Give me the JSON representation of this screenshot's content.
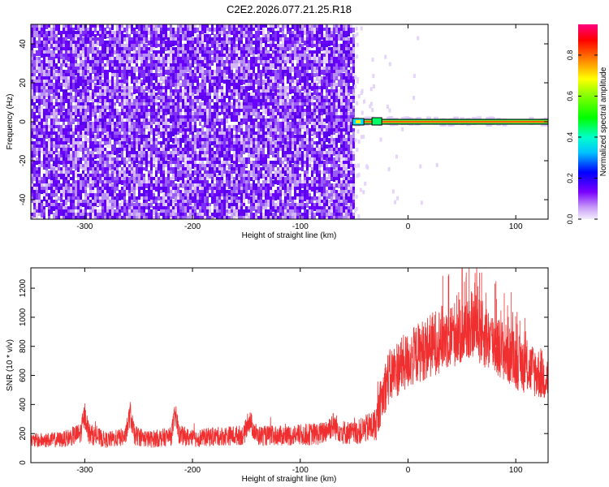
{
  "chart_data": [
    {
      "type": "heatmap",
      "title": "C2E2.2026.077.21.25.R18",
      "xlabel": "Height of straight line (km)",
      "ylabel": "Frequency (Hz)",
      "xlim": [
        -350,
        130
      ],
      "ylim": [
        -50,
        50
      ],
      "x_ticks": [
        -300,
        -200,
        -100,
        0,
        100
      ],
      "x_tick_labels": [
        "-300",
        "-200",
        "-100",
        "0",
        "100"
      ],
      "y_ticks": [
        -40,
        -20,
        0,
        20,
        40
      ],
      "y_tick_labels": [
        "-40",
        "-20",
        "0",
        "20",
        "40"
      ],
      "noise_region_x": [
        -350,
        -50
      ],
      "noise_amplitude_range": [
        0.0,
        0.25
      ],
      "signal_band": {
        "x": [
          -50,
          130
        ],
        "frequency": 0,
        "amplitude": 0.95
      },
      "colorbar": {
        "label": "Normalized spectral amplitude",
        "range": [
          0,
          0.95
        ],
        "ticks": [
          0,
          0.2,
          0.4,
          0.6,
          0.8
        ],
        "tick_labels": [
          "0.0",
          "0.2",
          "0.4",
          "0.6",
          "0.8"
        ],
        "colors": [
          "#e8d8f8",
          "#7a00ff",
          "#0000ff",
          "#00e0ff",
          "#00ff00",
          "#ffff00",
          "#ff8000",
          "#ff0000",
          "#ff0080"
        ]
      },
      "colors": {
        "noise": "#6a00ff",
        "band_outline": "#000000"
      },
      "grid": false
    },
    {
      "type": "line",
      "xlabel": "Height of straight line (km)",
      "ylabel": "SNR (10 * v/v)",
      "xlim": [
        -350,
        130
      ],
      "ylim": [
        0,
        1340
      ],
      "x_ticks": [
        -300,
        -200,
        -100,
        0,
        100
      ],
      "x_tick_labels": [
        "-300",
        "-200",
        "-100",
        "0",
        "100"
      ],
      "y_ticks": [
        0,
        200,
        400,
        600,
        800,
        1000,
        1200
      ],
      "y_tick_labels": [
        "0",
        "200",
        "400",
        "600",
        "800",
        "1000",
        "1200"
      ],
      "x": [
        -350,
        -320,
        -304,
        -300,
        -296,
        -280,
        -262,
        -258,
        -254,
        -240,
        -220,
        -216,
        -212,
        -200,
        -180,
        -152,
        -148,
        -140,
        -120,
        -100,
        -80,
        -70,
        -60,
        -50,
        -40,
        -30,
        -25,
        -20,
        -10,
        0,
        10,
        20,
        30,
        40,
        50,
        60,
        70,
        80,
        90,
        100,
        110,
        120,
        130
      ],
      "values": [
        150,
        160,
        200,
        330,
        200,
        155,
        180,
        340,
        190,
        160,
        180,
        330,
        190,
        165,
        180,
        190,
        300,
        185,
        185,
        190,
        200,
        260,
        210,
        200,
        230,
        260,
        420,
        560,
        650,
        700,
        760,
        800,
        850,
        880,
        900,
        950,
        880,
        820,
        760,
        700,
        660,
        620,
        580
      ],
      "spread": [
        100,
        110,
        150,
        180,
        150,
        110,
        130,
        180,
        140,
        120,
        130,
        180,
        140,
        120,
        130,
        140,
        170,
        140,
        140,
        150,
        160,
        190,
        170,
        160,
        190,
        240,
        320,
        380,
        400,
        400,
        420,
        450,
        460,
        460,
        460,
        470,
        460,
        440,
        420,
        400,
        380,
        360,
        340
      ],
      "color": "#f03030",
      "grid": false
    }
  ]
}
